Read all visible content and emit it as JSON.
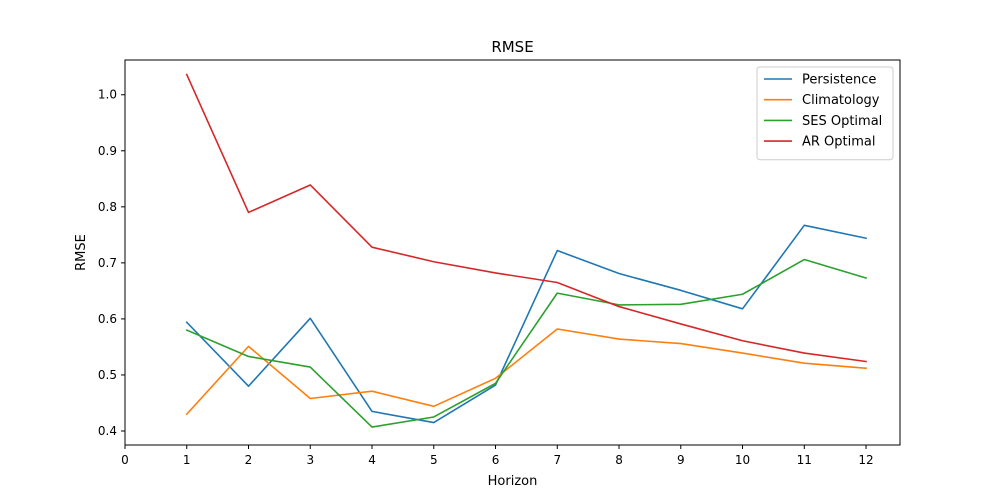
{
  "chart_data": {
    "type": "line",
    "title": "RMSE",
    "xlabel": "Horizon",
    "ylabel": "RMSE",
    "xlim": [
      0,
      12.55
    ],
    "ylim": [
      0.375,
      1.062
    ],
    "xticks": [
      0,
      1,
      2,
      3,
      4,
      5,
      6,
      7,
      8,
      9,
      10,
      11,
      12
    ],
    "yticks": [
      0.4,
      0.5,
      0.6,
      0.7,
      0.8,
      0.9,
      1.0
    ],
    "ytick_labels": [
      "0.4",
      "0.5",
      "0.6",
      "0.7",
      "0.8",
      "0.9",
      "1.0"
    ],
    "grid": false,
    "legend_position": "top-right",
    "x": [
      1,
      2,
      3,
      4,
      5,
      6,
      7,
      8,
      9,
      10,
      11,
      12
    ],
    "series": [
      {
        "name": "Persistence",
        "color": "#1f77b4",
        "values": [
          0.594,
          0.48,
          0.601,
          0.435,
          0.415,
          0.482,
          0.722,
          0.681,
          0.651,
          0.618,
          0.767,
          0.744
        ]
      },
      {
        "name": "Climatology",
        "color": "#ff7f0e",
        "values": [
          0.43,
          0.551,
          0.458,
          0.471,
          0.444,
          0.494,
          0.582,
          0.564,
          0.556,
          0.539,
          0.521,
          0.512
        ]
      },
      {
        "name": "SES Optimal",
        "color": "#2ca02c",
        "values": [
          0.58,
          0.533,
          0.514,
          0.407,
          0.425,
          0.485,
          0.646,
          0.625,
          0.626,
          0.644,
          0.706,
          0.673
        ]
      },
      {
        "name": "AR Optimal",
        "color": "#d62728",
        "values": [
          1.036,
          0.79,
          0.839,
          0.728,
          0.702,
          0.682,
          0.665,
          0.622,
          0.591,
          0.561,
          0.539,
          0.524
        ]
      }
    ]
  }
}
